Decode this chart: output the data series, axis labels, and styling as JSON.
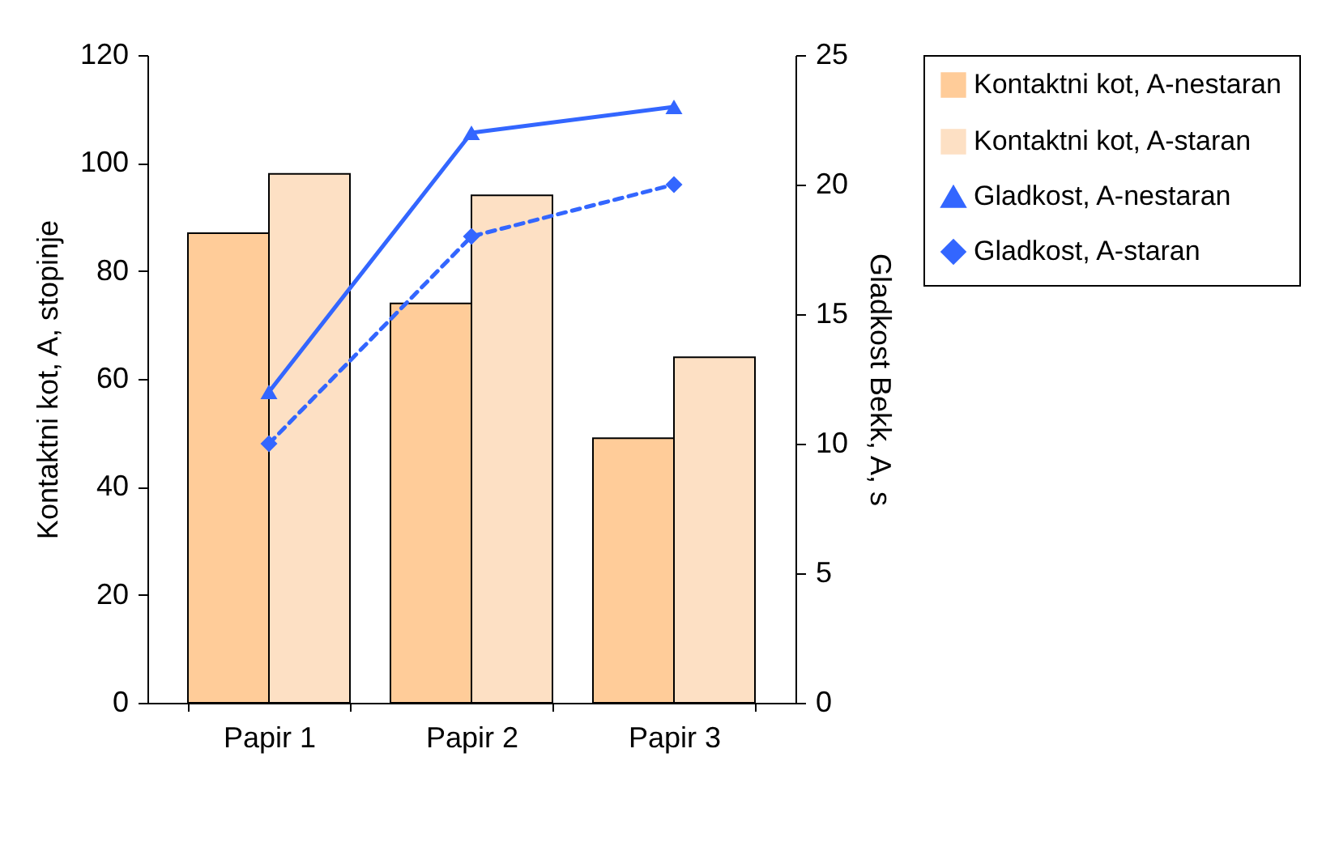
{
  "chart_data": {
    "type": "bar",
    "categories": [
      "Papir 1",
      "Papir 2",
      "Papir 3"
    ],
    "ylabel": "Kontaktni kot, A, stopinje",
    "y2label": "Gladkost Bekk, A, s",
    "ylim": [
      0,
      120
    ],
    "yticks": [
      0,
      20,
      40,
      60,
      80,
      100,
      120
    ],
    "y2lim": [
      0,
      25
    ],
    "y2ticks": [
      0,
      5,
      10,
      15,
      20,
      25
    ],
    "legend": "right",
    "series": [
      {
        "name": "Kontaktni kot, A-nestaran",
        "color": "#ffcc99",
        "values": [
          87,
          74,
          49
        ]
      },
      {
        "name": "Kontaktni kot, A-staran",
        "color": "#fde0c4",
        "values": [
          98,
          94,
          64
        ]
      },
      {
        "name": "Gladkost, A-nestaran",
        "type": "line",
        "axis": "y2",
        "color": "#3366ff",
        "marker": "triangle",
        "line_style": "solid",
        "values": [
          12,
          22,
          23
        ]
      },
      {
        "name": "Gladkost, A-staran",
        "type": "line",
        "axis": "y2",
        "color": "#3366ff",
        "marker": "diamond",
        "line_style": "dashed",
        "values": [
          10,
          18,
          20
        ]
      }
    ]
  }
}
